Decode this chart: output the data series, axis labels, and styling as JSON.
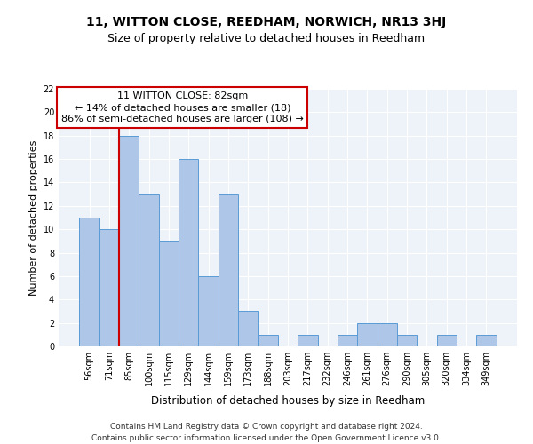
{
  "title": "11, WITTON CLOSE, REEDHAM, NORWICH, NR13 3HJ",
  "subtitle": "Size of property relative to detached houses in Reedham",
  "xlabel": "Distribution of detached houses by size in Reedham",
  "ylabel": "Number of detached properties",
  "bin_labels": [
    "56sqm",
    "71sqm",
    "85sqm",
    "100sqm",
    "115sqm",
    "129sqm",
    "144sqm",
    "159sqm",
    "173sqm",
    "188sqm",
    "203sqm",
    "217sqm",
    "232sqm",
    "246sqm",
    "261sqm",
    "276sqm",
    "290sqm",
    "305sqm",
    "320sqm",
    "334sqm",
    "349sqm"
  ],
  "bar_values": [
    11,
    10,
    18,
    13,
    9,
    16,
    6,
    13,
    3,
    1,
    0,
    1,
    0,
    1,
    2,
    2,
    1,
    0,
    1,
    0,
    1
  ],
  "bar_color": "#aec6e8",
  "bar_edge_color": "#5a9bd5",
  "annotation_text": "11 WITTON CLOSE: 82sqm\n← 14% of detached houses are smaller (18)\n86% of semi-detached houses are larger (108) →",
  "annotation_box_color": "#ffffff",
  "annotation_box_edge": "#cc0000",
  "vline_color": "#cc0000",
  "ylim": [
    0,
    22
  ],
  "yticks": [
    0,
    2,
    4,
    6,
    8,
    10,
    12,
    14,
    16,
    18,
    20,
    22
  ],
  "background_color": "#eef2f9",
  "footer": "Contains HM Land Registry data © Crown copyright and database right 2024.\nContains public sector information licensed under the Open Government Licence v3.0.",
  "title_fontsize": 10,
  "subtitle_fontsize": 9,
  "xlabel_fontsize": 8.5,
  "ylabel_fontsize": 8,
  "tick_fontsize": 7,
  "annotation_fontsize": 8,
  "footer_fontsize": 6.5
}
